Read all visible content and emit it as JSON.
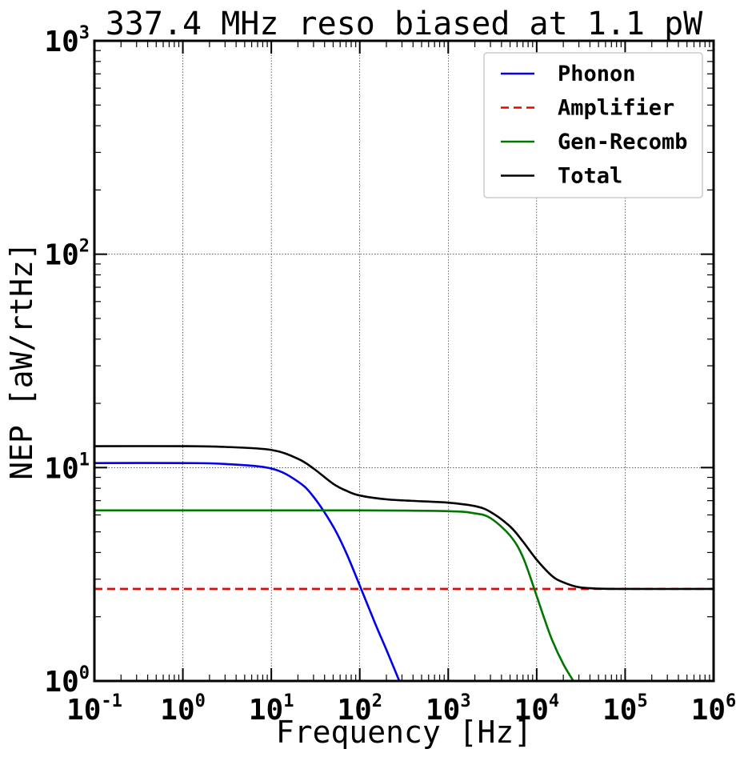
{
  "chart_data": {
    "type": "line",
    "title": "337.4 MHz reso biased at 1.1 pW",
    "xlabel": "Frequency [Hz]",
    "ylabel": "NEP [aW/rtHz]",
    "xscale": "log",
    "yscale": "log",
    "xlim": [
      0.1,
      1000000
    ],
    "ylim": [
      1,
      1000
    ],
    "grid": true,
    "legend_position": "top-right",
    "x_tick_labels": [
      {
        "base": "10",
        "exp": "-1",
        "value": 0.1
      },
      {
        "base": "10",
        "exp": "0",
        "value": 1
      },
      {
        "base": "10",
        "exp": "1",
        "value": 10
      },
      {
        "base": "10",
        "exp": "2",
        "value": 100
      },
      {
        "base": "10",
        "exp": "3",
        "value": 1000
      },
      {
        "base": "10",
        "exp": "4",
        "value": 10000
      },
      {
        "base": "10",
        "exp": "5",
        "value": 100000
      },
      {
        "base": "10",
        "exp": "6",
        "value": 1000000
      }
    ],
    "y_tick_labels": [
      {
        "base": "10",
        "exp": "0",
        "value": 1
      },
      {
        "base": "10",
        "exp": "1",
        "value": 10
      },
      {
        "base": "10",
        "exp": "2",
        "value": 100
      },
      {
        "base": "10",
        "exp": "3",
        "value": 1000
      }
    ],
    "series": [
      {
        "name": "Phonon",
        "color": "#0000ee",
        "dash": "solid",
        "x": [
          0.1,
          1,
          3,
          10,
          20,
          30,
          50,
          70,
          100,
          150,
          200,
          280
        ],
        "y": [
          10.5,
          10.5,
          10.4,
          9.9,
          8.6,
          7.3,
          5.3,
          4.0,
          2.8,
          1.85,
          1.4,
          1.0
        ]
      },
      {
        "name": "Amplifier",
        "color": "#ee0000",
        "dash": "dashed",
        "x": [
          0.1,
          1000000
        ],
        "y": [
          2.7,
          2.7
        ]
      },
      {
        "name": "Gen-Recomb",
        "color": "#007700",
        "dash": "solid",
        "x": [
          0.1,
          100,
          1000,
          2000,
          3000,
          5000,
          7000,
          10000,
          12000,
          15000,
          20000,
          26000
        ],
        "y": [
          6.3,
          6.3,
          6.25,
          6.1,
          5.8,
          4.8,
          3.8,
          2.5,
          2.0,
          1.55,
          1.2,
          1.0
        ]
      },
      {
        "name": "Total",
        "color": "#000000",
        "dash": "solid",
        "x": [
          0.1,
          1,
          3,
          10,
          20,
          30,
          50,
          70,
          100,
          200,
          500,
          1000,
          2000,
          3000,
          5000,
          7000,
          10000,
          15000,
          20000,
          30000,
          50000,
          100000,
          1000000
        ],
        "y": [
          12.6,
          12.6,
          12.5,
          12.1,
          11.0,
          9.9,
          8.4,
          7.8,
          7.4,
          7.1,
          6.95,
          6.85,
          6.6,
          6.2,
          5.3,
          4.5,
          3.7,
          3.1,
          2.9,
          2.75,
          2.71,
          2.7,
          2.7
        ]
      }
    ]
  }
}
